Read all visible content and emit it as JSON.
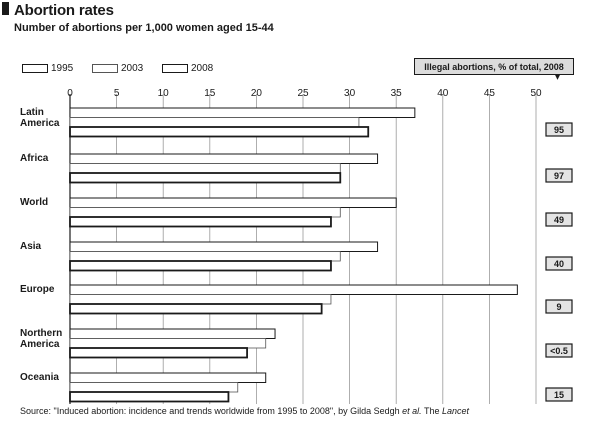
{
  "title": "Abortion rates",
  "subtitle": "Number of abortions per 1,000 women aged 15-44",
  "legend": [
    {
      "label": "1995"
    },
    {
      "label": "2003"
    },
    {
      "label": "2008"
    }
  ],
  "badge_text": "Illegal abortions, % of total, 2008",
  "source": {
    "prefix": "Source: \"Induced abortion: incidence and trends worldwide from 1995 to 2008\", by Gilda Sedgh",
    "italic": "et al.",
    "middle": " The ",
    "journal": "Lancet"
  },
  "chart_data": {
    "type": "bar",
    "orientation": "horizontal",
    "title": "Abortion rates",
    "subtitle": "Number of abortions per 1,000 women aged 15-44",
    "xlim": [
      0,
      50
    ],
    "xticks": [
      0,
      5,
      10,
      15,
      20,
      25,
      30,
      35,
      40,
      45,
      50
    ],
    "grid": true,
    "legend_position": "top-left",
    "categories": [
      "Latin America",
      "Africa",
      "World",
      "Asia",
      "Europe",
      "Northern America",
      "Oceania"
    ],
    "series": [
      {
        "name": "1995",
        "values": [
          37,
          33,
          35,
          33,
          48,
          22,
          21
        ]
      },
      {
        "name": "2003",
        "values": [
          31,
          29,
          29,
          29,
          28,
          21,
          18
        ]
      },
      {
        "name": "2008",
        "values": [
          32,
          29,
          28,
          28,
          27,
          19,
          17
        ]
      }
    ],
    "illegal_pct_2008": [
      "95",
      "97",
      "49",
      "40",
      "9",
      "<0.5",
      "15"
    ]
  }
}
